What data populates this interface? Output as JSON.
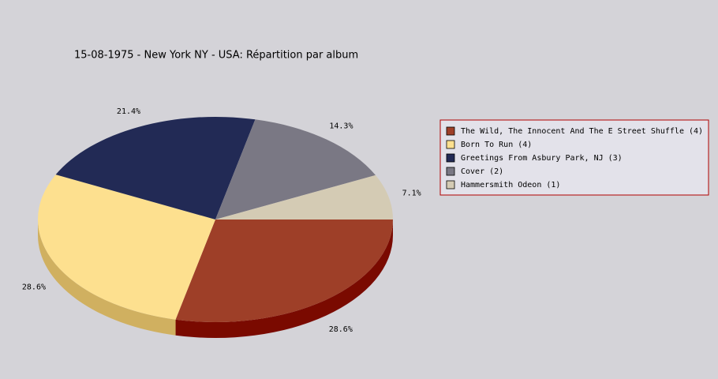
{
  "chart_data": {
    "type": "pie",
    "title": "15-08-1975 - New York NY - USA:  Répartition par album",
    "categories": [
      "The Wild, The Innocent And The E Street Shuffle (4)",
      "Born To Run (4)",
      "Greetings From Asbury Park, NJ (3)",
      "Cover (2)",
      "Hammersmith Odeon  (1)"
    ],
    "values": [
      28.6,
      28.6,
      21.4,
      14.3,
      7.1
    ],
    "value_labels": [
      "28.6%",
      "28.6%",
      "21.4%",
      "14.3%",
      "7.1%"
    ],
    "colors": [
      "#9e3f28",
      "#fde08f",
      "#222a55",
      "#7a7884",
      "#d4cbb4"
    ],
    "side_colors": [
      "#7a0a00",
      "#d0b060",
      "#10163a",
      "#55535e",
      "#a8a08a"
    ],
    "legend": "right"
  }
}
